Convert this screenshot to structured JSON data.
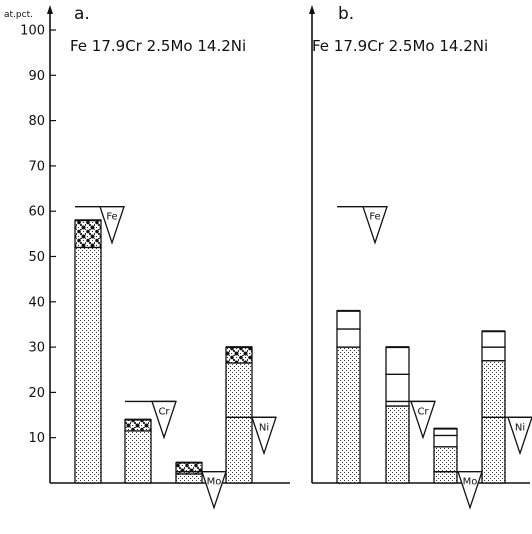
{
  "chart_data": [
    {
      "type": "bar",
      "panel_label": "a.",
      "title": "Fe 17.9Cr 2.5Mo 14.2Ni",
      "ylabel": "at.pct.",
      "ylim": [
        0,
        100
      ],
      "yticks": [
        10,
        20,
        30,
        40,
        50,
        60,
        70,
        80,
        90,
        100
      ],
      "categories": [
        "Fe",
        "Cr",
        "Mo",
        "Ni"
      ],
      "nominal_markers": [
        {
          "label": "Fe",
          "value": 61
        },
        {
          "label": "Cr",
          "value": 18
        },
        {
          "label": "Mo",
          "value": 2.5
        },
        {
          "label": "Ni",
          "value": 14.5
        }
      ],
      "bars": [
        {
          "category": "Fe",
          "segments": [
            {
              "from": 0,
              "to": 52,
              "fill": "stipple"
            },
            {
              "from": 52,
              "to": 58,
              "fill": "dots"
            }
          ]
        },
        {
          "category": "Cr",
          "segments": [
            {
              "from": 0,
              "to": 11.5,
              "fill": "stipple"
            },
            {
              "from": 11.5,
              "to": 14,
              "fill": "dots"
            }
          ]
        },
        {
          "category": "Mo",
          "segments": [
            {
              "from": 0,
              "to": 2,
              "fill": "stipple"
            },
            {
              "from": 2,
              "to": 4.5,
              "fill": "dots"
            }
          ]
        },
        {
          "category": "Ni",
          "segments": [
            {
              "from": 0,
              "to": 26.5,
              "fill": "stipple"
            },
            {
              "from": 26.5,
              "to": 30,
              "fill": "dots"
            }
          ]
        }
      ]
    },
    {
      "type": "bar",
      "panel_label": "b.",
      "title": "Fe 17.9Cr 2.5Mo 14.2Ni",
      "ylim": [
        0,
        100
      ],
      "categories": [
        "Fe",
        "Cr",
        "Mo",
        "Ni"
      ],
      "nominal_markers": [
        {
          "label": "Fe",
          "value": 61
        },
        {
          "label": "Cr",
          "value": 18
        },
        {
          "label": "Mo",
          "value": 2.5
        },
        {
          "label": "Ni",
          "value": 14.5
        }
      ],
      "bars": [
        {
          "category": "Fe",
          "segments": [
            {
              "from": 0,
              "to": 30,
              "fill": "stipple"
            },
            {
              "from": 30,
              "to": 34,
              "fill": "white"
            },
            {
              "from": 34,
              "to": 38,
              "fill": "white"
            }
          ]
        },
        {
          "category": "Cr",
          "segments": [
            {
              "from": 0,
              "to": 17,
              "fill": "stipple"
            },
            {
              "from": 17,
              "to": 24,
              "fill": "white"
            },
            {
              "from": 24,
              "to": 30,
              "fill": "white"
            }
          ]
        },
        {
          "category": "Mo",
          "segments": [
            {
              "from": 0,
              "to": 2.5,
              "fill": "stipple"
            },
            {
              "from": 2.5,
              "to": 8,
              "fill": "stipple"
            },
            {
              "from": 8,
              "to": 10.5,
              "fill": "white"
            },
            {
              "from": 10.5,
              "to": 12,
              "fill": "white"
            }
          ]
        },
        {
          "category": "Ni",
          "segments": [
            {
              "from": 0,
              "to": 27,
              "fill": "stipple"
            },
            {
              "from": 27,
              "to": 30,
              "fill": "white"
            },
            {
              "from": 30,
              "to": 33.5,
              "fill": "white"
            }
          ]
        }
      ]
    }
  ]
}
